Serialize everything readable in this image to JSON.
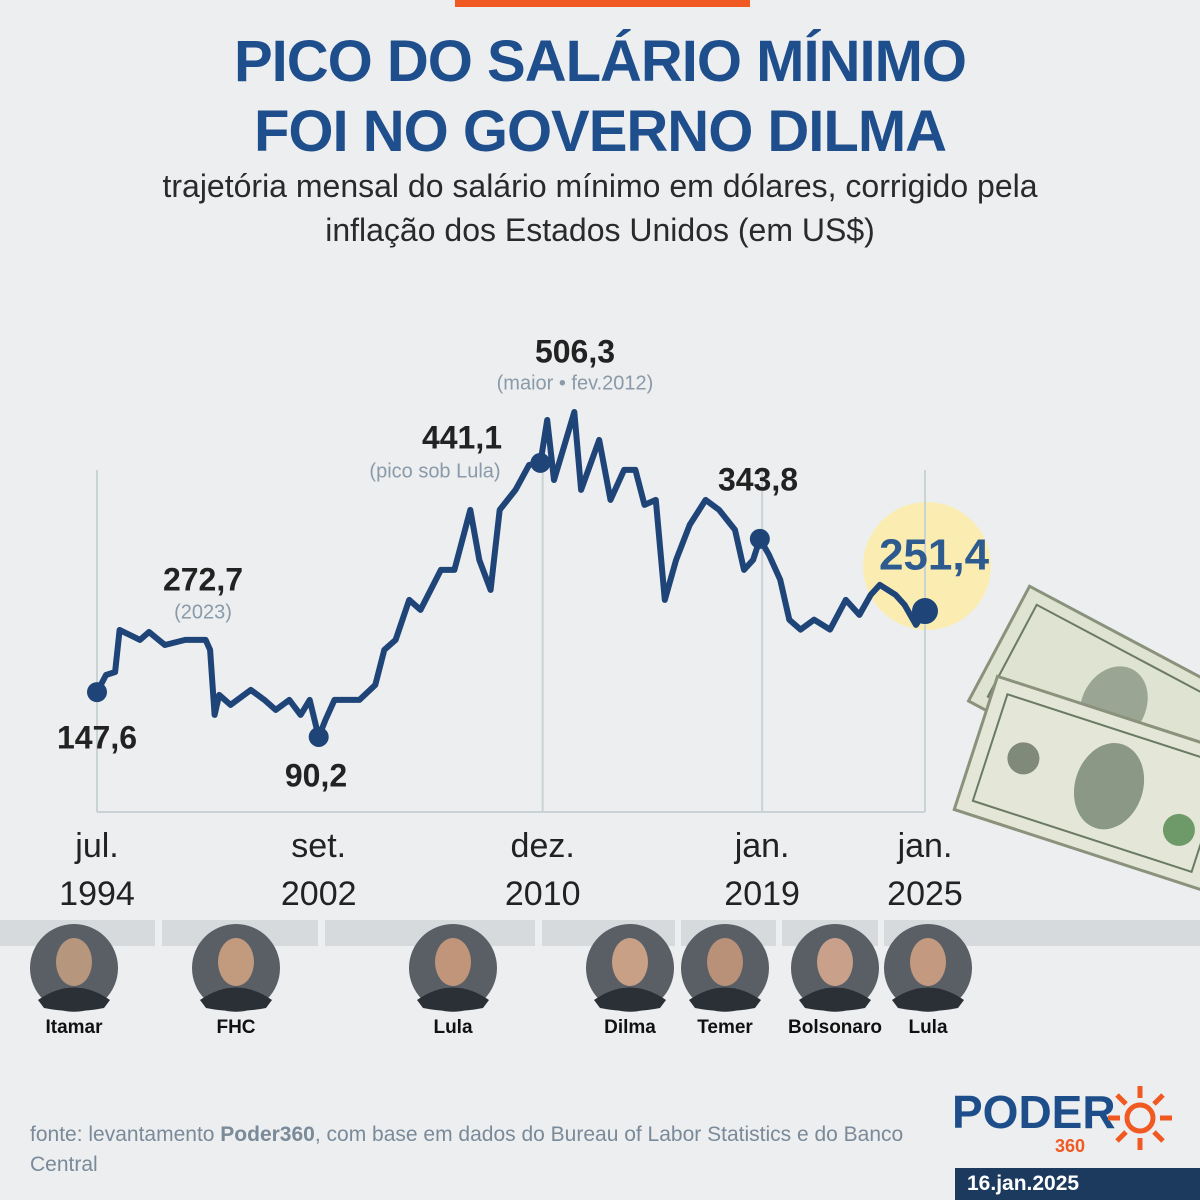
{
  "chart_data": {
    "type": "line",
    "title_lines": [
      "PICO DO SALÁRIO MÍNIMO",
      "FOI NO GOVERNO DILMA"
    ],
    "subtitle_lines": [
      "trajetória mensal do salário mínimo em dólares, corrigido pela",
      "inflação dos Estados Unidos (em US$)"
    ],
    "color": "#1f4578",
    "x": [
      "1994-07",
      "1994-11",
      "1995-03",
      "1995-05",
      "1996-02",
      "1996-06",
      "1997-01",
      "1997-10",
      "1998-07",
      "1998-09",
      "1998-11",
      "1999-01",
      "1999-06",
      "2000-03",
      "2000-09",
      "2001-02",
      "2001-08",
      "2002-01",
      "2002-05",
      "2002-09",
      "2002-12",
      "2003-04",
      "2004-03",
      "2004-10",
      "2005-02",
      "2005-07",
      "2006-01",
      "2006-06",
      "2007-03",
      "2007-09",
      "2008-04",
      "2008-08",
      "2009-01",
      "2009-05",
      "2009-12",
      "2010-06",
      "2010-11",
      "2011-02",
      "2011-05",
      "2011-09",
      "2012-02",
      "2012-05",
      "2013-01",
      "2013-06",
      "2013-12",
      "2014-05",
      "2014-09",
      "2015-02",
      "2015-06",
      "2015-11",
      "2016-05",
      "2016-12",
      "2017-06",
      "2018-01",
      "2018-05",
      "2018-09",
      "2018-12",
      "2019-04",
      "2019-09",
      "2020-01",
      "2020-06",
      "2020-12",
      "2021-07",
      "2022-02",
      "2022-08",
      "2023-01",
      "2023-05",
      "2023-12",
      "2024-04",
      "2024-09",
      "2025-01"
    ],
    "values": [
      147.6,
      169.5,
      173.4,
      227.1,
      214.5,
      224.6,
      208.0,
      214.5,
      214.5,
      201.7,
      118.5,
      144.1,
      131.3,
      150.5,
      137.7,
      124.9,
      137.7,
      118.5,
      137.7,
      90.2,
      112.2,
      137.7,
      137.7,
      156.9,
      201.7,
      214.5,
      265.7,
      252.9,
      304.1,
      304.1,
      380.9,
      316.9,
      278.5,
      380.9,
      406.5,
      438.5,
      441.1,
      496.0,
      419.2,
      457.6,
      506.3,
      406.5,
      470.5,
      393.7,
      432.1,
      432.1,
      387.3,
      393.7,
      265.7,
      316.9,
      361.7,
      393.7,
      380.9,
      355.3,
      304.1,
      316.9,
      343.8,
      323.6,
      291.6,
      240.3,
      227.6,
      240.3,
      227.6,
      265.7,
      246.5,
      272.1,
      284.9,
      272.1,
      259.3,
      233.7,
      251.4
    ],
    "ylim": [
      0,
      600
    ],
    "xticks": [
      {
        "value": "1994-07",
        "label": "jul. 1994"
      },
      {
        "value": "2002-09",
        "label": "set. 2002"
      },
      {
        "value": "2010-12",
        "label": "dez. 2010"
      },
      {
        "value": "2019-01",
        "label": "jan. 2019"
      },
      {
        "value": "2025-01",
        "label": "jan. 2025"
      }
    ],
    "annotations": [
      {
        "label": "147,6",
        "value": 147.6,
        "x": "1994-07"
      },
      {
        "label": "272,7",
        "value": 272.7,
        "note": "(2023)"
      },
      {
        "label": "90,2",
        "value": 90.2,
        "x": "2002-09"
      },
      {
        "label": "441,1",
        "value": 441.1,
        "x": "2010-11",
        "note": "(pico sob Lula)"
      },
      {
        "label": "506,3",
        "value": 506.3,
        "note": "(maior • fev.2012)"
      },
      {
        "label": "343,8",
        "value": 343.8,
        "x": "2018-12"
      },
      {
        "label": "251,4",
        "value": 251.4,
        "x": "2025-01"
      }
    ],
    "governments": [
      "Itamar",
      "FHC",
      "Lula",
      "Dilma",
      "Temer",
      "Bolsonaro",
      "Lula"
    ],
    "source": {
      "prefix": "fonte: levantamento ",
      "bold": "Poder360",
      "suffix": ", com base em dados do Bureau of Labor Statistics e do Banco Central"
    },
    "logo": {
      "name": "PODER",
      "number": "360"
    },
    "date": "16.jan.2025"
  }
}
